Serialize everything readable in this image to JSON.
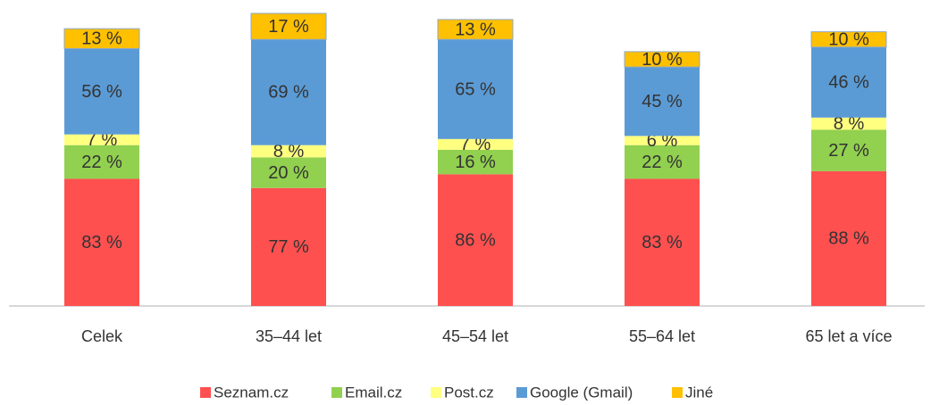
{
  "chart_data": {
    "type": "stacked_bar",
    "categories": [
      "Celek",
      "35–44 let",
      "45–54 let",
      "55–64 let",
      "65 let a více"
    ],
    "series": [
      {
        "name": "Seznam.cz",
        "color": "#ff5050",
        "values": [
          83,
          77,
          86,
          83,
          88
        ],
        "value_labels": [
          "83 %",
          "77 %",
          "86 %",
          "83 %",
          "88 %"
        ]
      },
      {
        "name": "Email.cz",
        "color": "#92d050",
        "values": [
          22,
          20,
          16,
          22,
          27
        ],
        "value_labels": [
          "22 %",
          "20 %",
          "16 %",
          "22 %",
          "27 %"
        ]
      },
      {
        "name": "Post.cz",
        "color": "#ffff80",
        "values": [
          7,
          8,
          7,
          6,
          8
        ],
        "value_labels": [
          "7 %",
          "8 %",
          "7 %",
          "6 %",
          "8 %"
        ]
      },
      {
        "name": "Google (Gmail)",
        "color": "#5b9bd5",
        "values": [
          56,
          69,
          65,
          45,
          46
        ],
        "value_labels": [
          "56 %",
          "69 %",
          "65 %",
          "45 %",
          "46 %"
        ]
      },
      {
        "name": "Jiné",
        "color": "#ffc000",
        "values": [
          13,
          17,
          13,
          10,
          10
        ],
        "value_labels": [
          "13 %",
          "17 %",
          "13 %",
          "10 %",
          "10 %"
        ]
      }
    ],
    "legend": "bottom"
  }
}
